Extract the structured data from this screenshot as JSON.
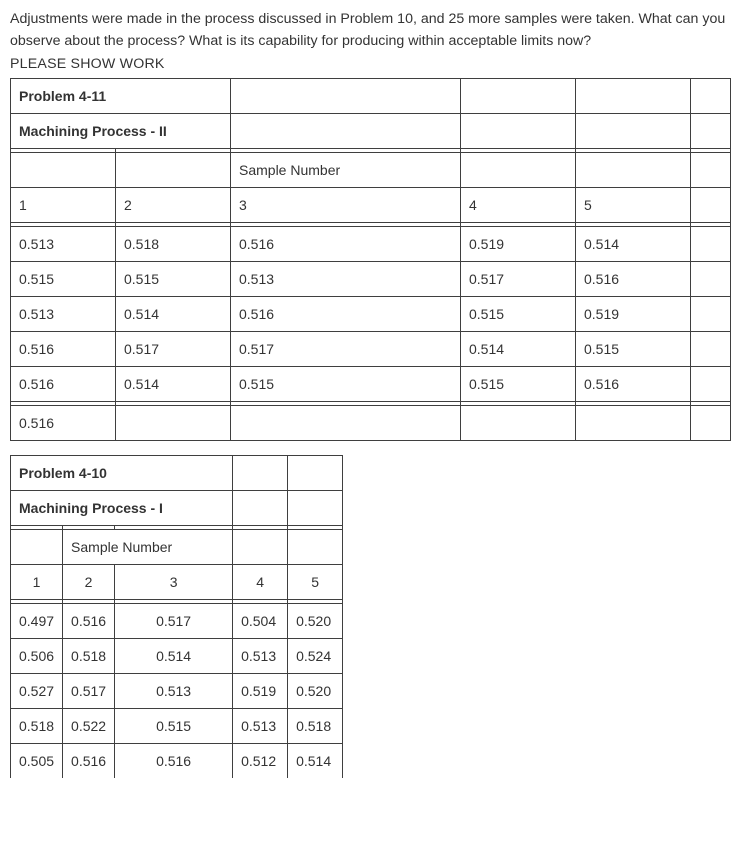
{
  "intro": "Adjustments were made in the process discussed in Problem 10, and 25 more samples were taken. What can you observe about the process? What is its capability for producing within acceptable limits now?",
  "showwork": "PLEASE SHOW WORK",
  "table1": {
    "title": "Problem 4-11",
    "subtitle": "Machining Process - II",
    "sample_label": "Sample Number",
    "headers": [
      "1",
      "2",
      "3",
      "4",
      "5"
    ],
    "rows": [
      [
        "0.513",
        "0.518",
        "0.516",
        "0.519",
        "0.514"
      ],
      [
        "0.515",
        "0.515",
        "0.513",
        "0.517",
        "0.516"
      ],
      [
        "0.513",
        "0.514",
        "0.516",
        "0.515",
        "0.519"
      ],
      [
        "0.516",
        "0.517",
        "0.517",
        "0.514",
        "0.515"
      ],
      [
        "0.516",
        "0.514",
        "0.515",
        "0.515",
        "0.516"
      ]
    ],
    "footer": "0.516"
  },
  "table2": {
    "title": "Problem 4-10",
    "subtitle": "Machining Process - I",
    "sample_label": "Sample Number",
    "headers": [
      "1",
      "2",
      "3",
      "4",
      "5"
    ],
    "rows": [
      [
        "0.497",
        "0.516",
        "0.517",
        "0.504",
        "0.520"
      ],
      [
        "0.506",
        "0.518",
        "0.514",
        "0.513",
        "0.524"
      ],
      [
        "0.527",
        "0.517",
        "0.513",
        "0.519",
        "0.520"
      ],
      [
        "0.518",
        "0.522",
        "0.515",
        "0.513",
        "0.518"
      ],
      [
        "0.505",
        "0.516",
        "0.516",
        "0.512",
        "0.514"
      ]
    ]
  },
  "colors": {
    "text": "#333333",
    "border": "#3f3f3f",
    "background": "#ffffff"
  }
}
